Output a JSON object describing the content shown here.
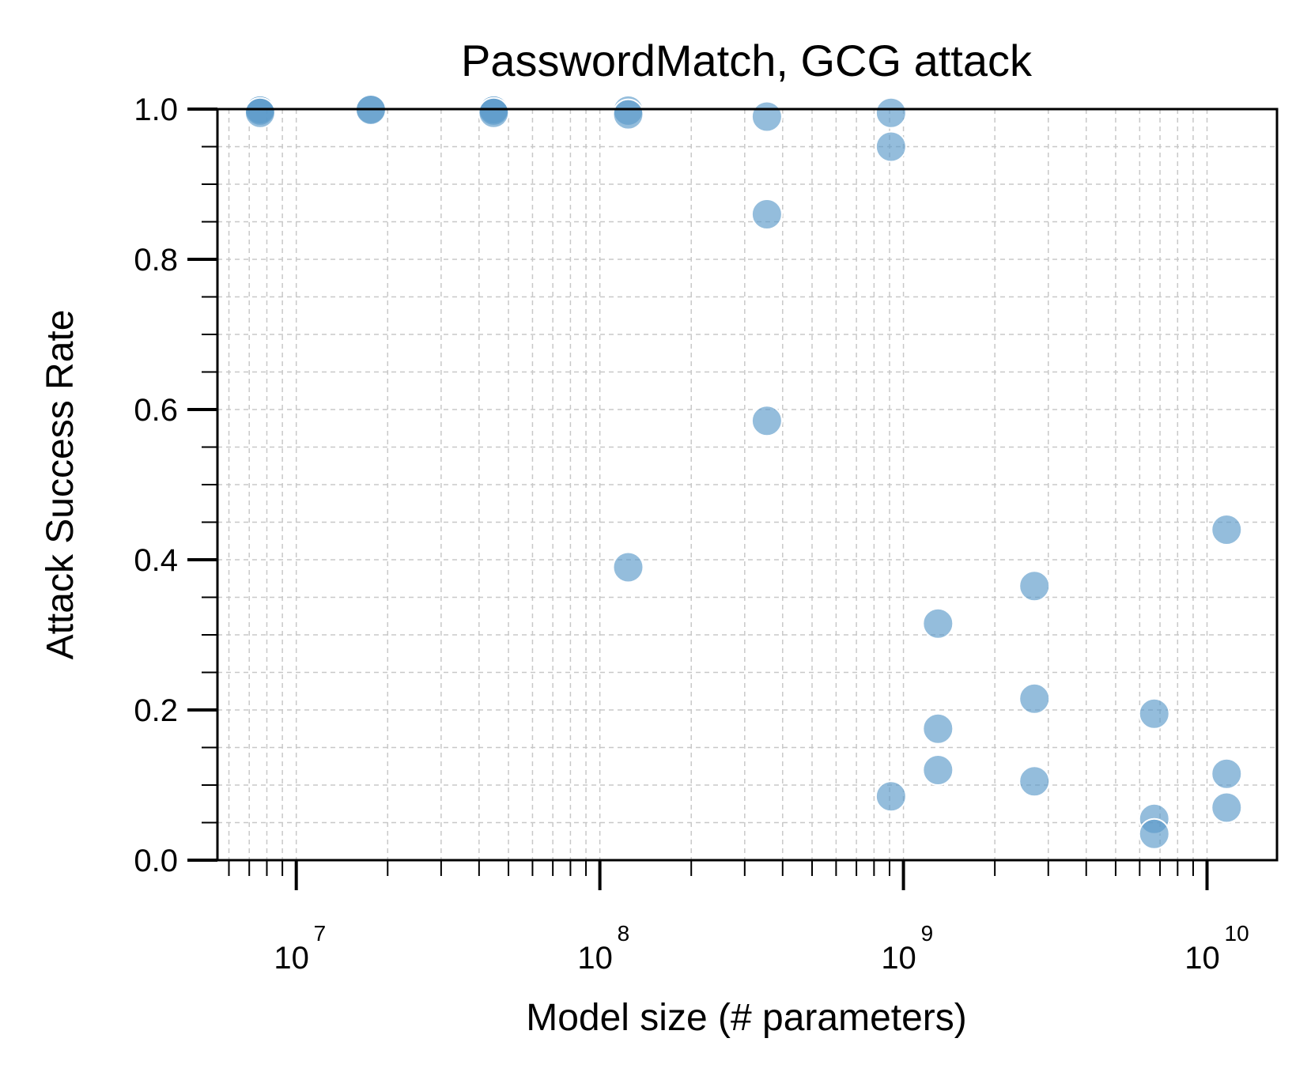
{
  "chart_data": {
    "type": "scatter",
    "title": "PasswordMatch, GCG attack",
    "xlabel": "Model size (# parameters)",
    "ylabel": "Attack Success Rate",
    "x_scale": "log",
    "xlim": [
      5500000,
      17000000000
    ],
    "ylim": [
      0.0,
      1.0
    ],
    "grid": true,
    "grid_minor": true,
    "point_color": "#5b9ac9",
    "point_edge_color": "#ffffff",
    "point_alpha": 0.65,
    "y_ticks": [
      {
        "value": 0.0,
        "label": "0.0"
      },
      {
        "value": 0.2,
        "label": "0.2"
      },
      {
        "value": 0.4,
        "label": "0.4"
      },
      {
        "value": 0.6,
        "label": "0.6"
      },
      {
        "value": 0.8,
        "label": "0.8"
      },
      {
        "value": 1.0,
        "label": "1.0"
      }
    ],
    "x_ticks": [
      {
        "value": 10000000,
        "base": "10",
        "exp": "7"
      },
      {
        "value": 100000000,
        "base": "10",
        "exp": "8"
      },
      {
        "value": 1000000000,
        "base": "10",
        "exp": "9"
      },
      {
        "value": 10000000000,
        "base": "10",
        "exp": "10"
      }
    ],
    "points": [
      {
        "x": 7600000,
        "y": 1.0
      },
      {
        "x": 7600000,
        "y": 0.998
      },
      {
        "x": 7600000,
        "y": 0.995
      },
      {
        "x": 17600000,
        "y": 1.0
      },
      {
        "x": 17600000,
        "y": 0.999
      },
      {
        "x": 44700000,
        "y": 1.0
      },
      {
        "x": 44700000,
        "y": 0.998
      },
      {
        "x": 44700000,
        "y": 0.995
      },
      {
        "x": 124000000,
        "y": 0.998
      },
      {
        "x": 124000000,
        "y": 0.993
      },
      {
        "x": 124000000,
        "y": 0.39
      },
      {
        "x": 355000000,
        "y": 0.99
      },
      {
        "x": 355000000,
        "y": 0.86
      },
      {
        "x": 355000000,
        "y": 0.585
      },
      {
        "x": 910000000,
        "y": 0.995
      },
      {
        "x": 910000000,
        "y": 0.95
      },
      {
        "x": 910000000,
        "y": 0.085
      },
      {
        "x": 1300000000,
        "y": 0.315
      },
      {
        "x": 1300000000,
        "y": 0.175
      },
      {
        "x": 1300000000,
        "y": 0.12
      },
      {
        "x": 2700000000,
        "y": 0.365
      },
      {
        "x": 2700000000,
        "y": 0.215
      },
      {
        "x": 2700000000,
        "y": 0.105
      },
      {
        "x": 6700000000,
        "y": 0.195
      },
      {
        "x": 6700000000,
        "y": 0.055
      },
      {
        "x": 6700000000,
        "y": 0.035
      },
      {
        "x": 11600000000,
        "y": 0.44
      },
      {
        "x": 11600000000,
        "y": 0.115
      },
      {
        "x": 11600000000,
        "y": 0.07
      }
    ]
  }
}
